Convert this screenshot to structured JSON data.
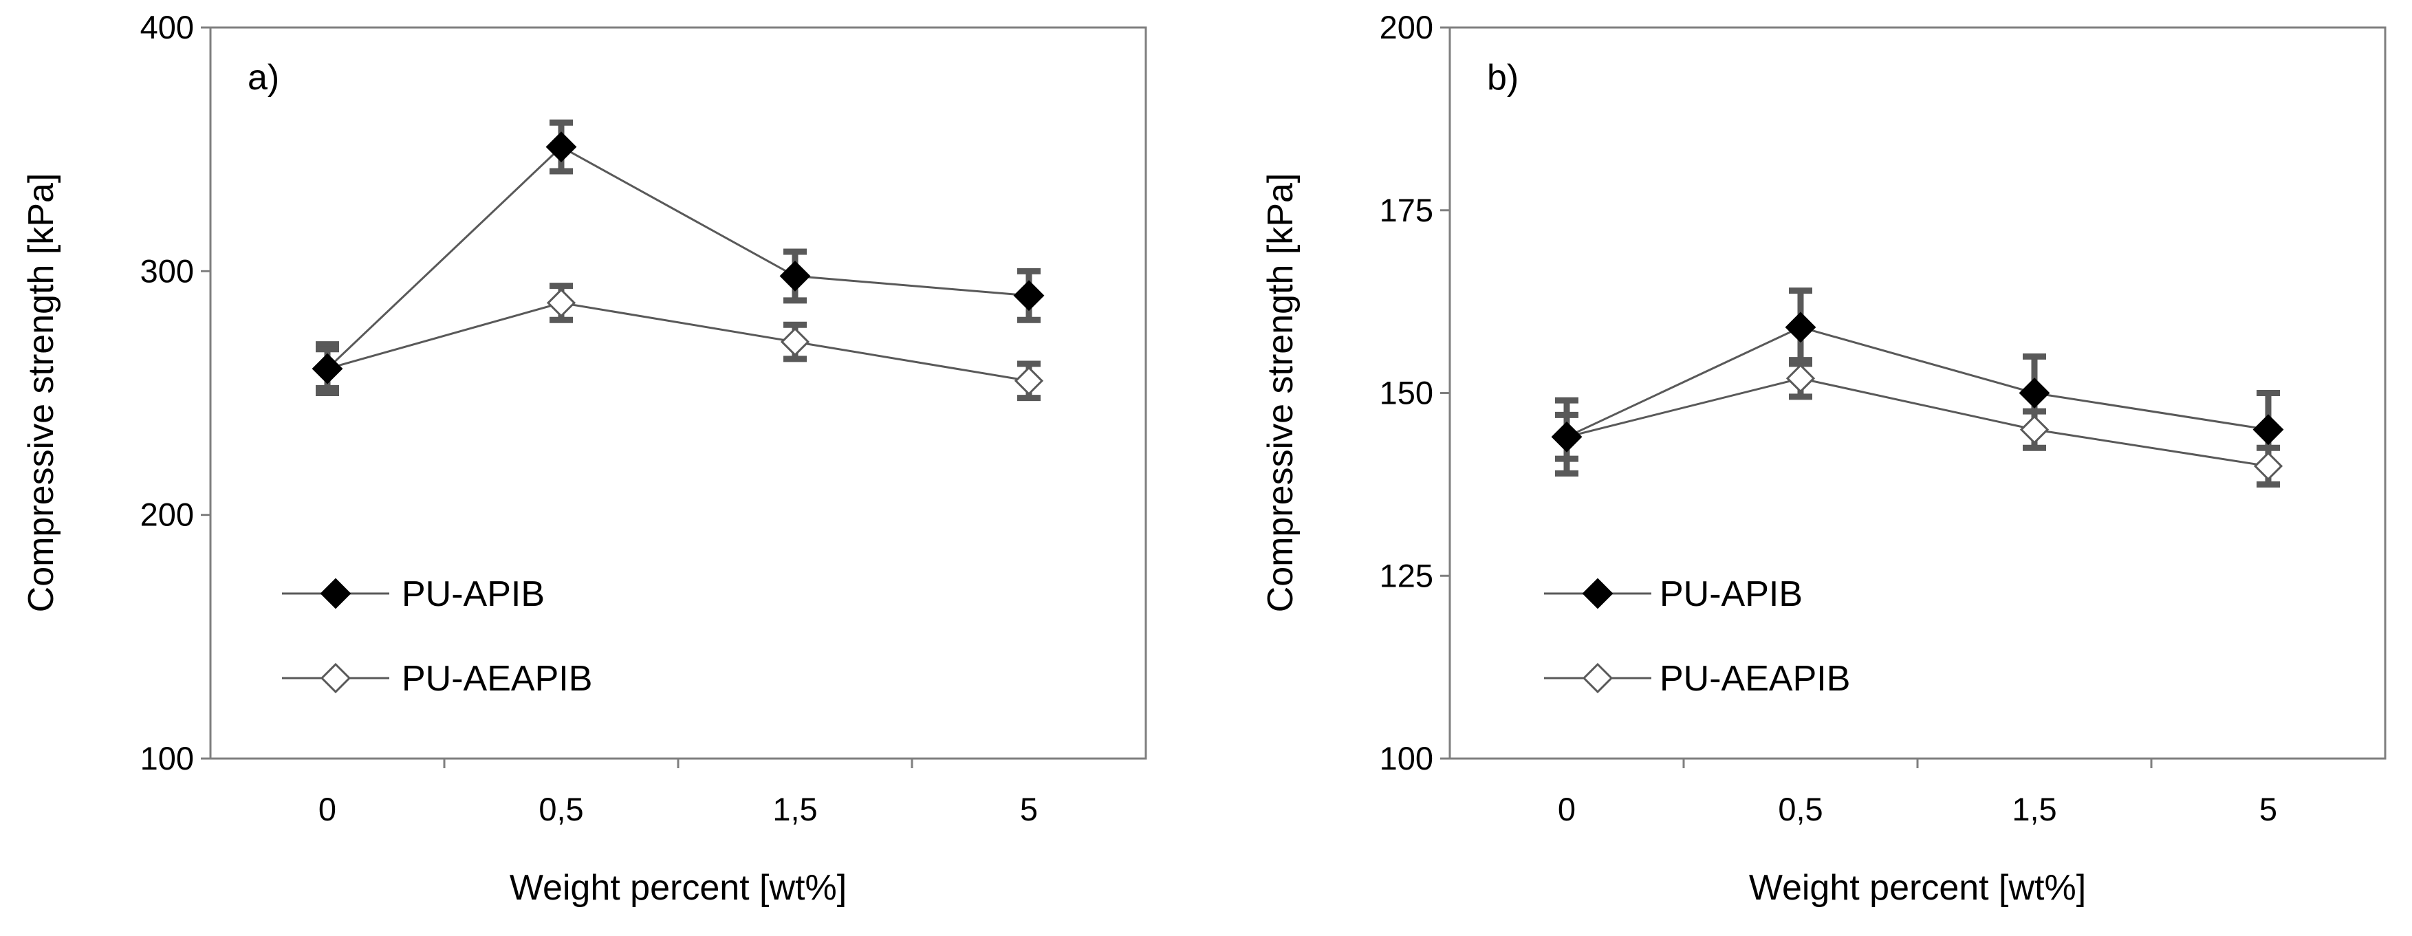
{
  "chart_data": [
    {
      "type": "line",
      "panel_label": "a)",
      "categories": [
        "0",
        "0,5",
        "1,5",
        "5"
      ],
      "series": [
        {
          "name": "PU-APIB",
          "marker": "filled-diamond",
          "values": [
            260,
            351,
            298,
            290
          ],
          "errors": [
            10,
            10,
            10,
            10
          ]
        },
        {
          "name": "PU-AEAPIB",
          "marker": "open-diamond",
          "values": [
            260,
            287,
            271,
            255
          ],
          "errors": [
            8,
            7,
            7,
            7
          ]
        }
      ],
      "xlabel": "Weight percent [wt%]",
      "ylabel": "Compressive strength [kPa]",
      "ylim": [
        100,
        400
      ],
      "yticks": [
        "100",
        "200",
        "300",
        "400"
      ],
      "legend": "bottom-left",
      "grid": false
    },
    {
      "type": "line",
      "panel_label": "b)",
      "categories": [
        "0",
        "0,5",
        "1,5",
        "5"
      ],
      "series": [
        {
          "name": "PU-APIB",
          "marker": "filled-diamond",
          "values": [
            144,
            159,
            150,
            145
          ],
          "errors": [
            5,
            5,
            5,
            5
          ]
        },
        {
          "name": "PU-AEAPIB",
          "marker": "open-diamond",
          "values": [
            144,
            152,
            145,
            140
          ],
          "errors": [
            3,
            2.5,
            2.5,
            2.5
          ]
        }
      ],
      "xlabel": "Weight percent [wt%]",
      "ylabel": "Compressive strength [kPa]",
      "ylim": [
        100,
        200
      ],
      "yticks": [
        "100",
        "125",
        "150",
        "175",
        "200"
      ],
      "legend": "bottom-left",
      "grid": false
    }
  ]
}
